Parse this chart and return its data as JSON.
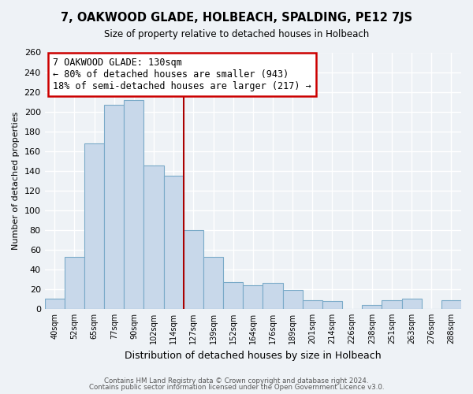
{
  "title": "7, OAKWOOD GLADE, HOLBEACH, SPALDING, PE12 7JS",
  "subtitle": "Size of property relative to detached houses in Holbeach",
  "xlabel": "Distribution of detached houses by size in Holbeach",
  "ylabel": "Number of detached properties",
  "bar_labels": [
    "40sqm",
    "52sqm",
    "65sqm",
    "77sqm",
    "90sqm",
    "102sqm",
    "114sqm",
    "127sqm",
    "139sqm",
    "152sqm",
    "164sqm",
    "176sqm",
    "189sqm",
    "201sqm",
    "214sqm",
    "226sqm",
    "238sqm",
    "251sqm",
    "263sqm",
    "276sqm",
    "288sqm"
  ],
  "bar_values": [
    10,
    53,
    168,
    207,
    212,
    145,
    135,
    80,
    53,
    27,
    24,
    26,
    19,
    9,
    8,
    0,
    4,
    9,
    10,
    0,
    9
  ],
  "bar_color": "#c8d8ea",
  "bar_edge_color": "#7aaac8",
  "highlight_line_color": "#aa0000",
  "annotation_title": "7 OAKWOOD GLADE: 130sqm",
  "annotation_line1": "← 80% of detached houses are smaller (943)",
  "annotation_line2": "18% of semi-detached houses are larger (217) →",
  "annotation_box_color": "#ffffff",
  "annotation_box_edge": "#cc0000",
  "ylim_max": 260,
  "yticks": [
    0,
    20,
    40,
    60,
    80,
    100,
    120,
    140,
    160,
    180,
    200,
    220,
    240,
    260
  ],
  "footer1": "Contains HM Land Registry data © Crown copyright and database right 2024.",
  "footer2": "Contains public sector information licensed under the Open Government Licence v3.0.",
  "bg_color": "#eef2f6",
  "plot_bg_color": "#eef2f6",
  "grid_color": "#ffffff"
}
